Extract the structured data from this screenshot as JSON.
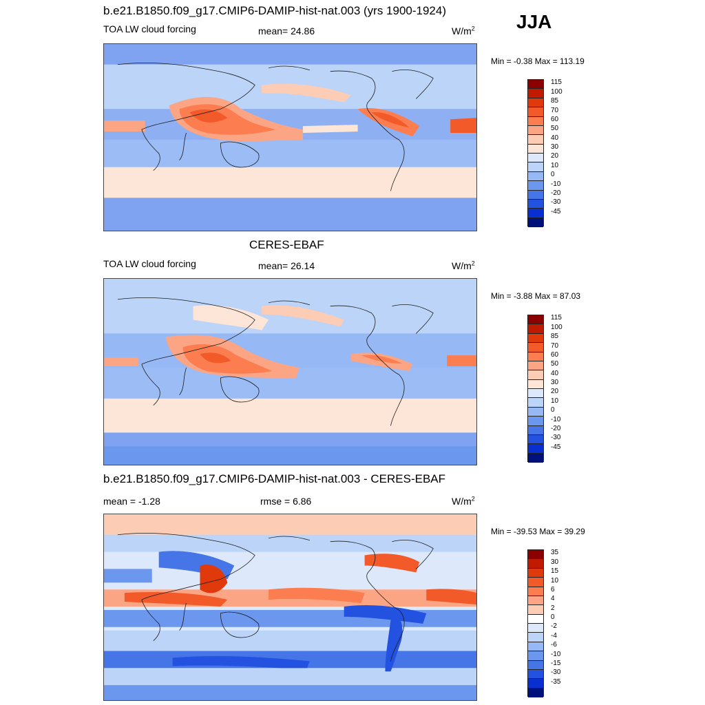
{
  "season": "JJA",
  "panels": [
    {
      "title": "b.e21.B1850.f09_g17.CMIP6-DAMIP-hist-nat.003 (yrs 1900-1924)",
      "left_label": "TOA LW cloud forcing",
      "center_label": "mean=  24.86",
      "units": "W/m",
      "units_sup": "2",
      "minmax": "Min =  -0.38 Max = 113.19",
      "colorbar_levels": [
        "115",
        "100",
        "85",
        "70",
        "60",
        "50",
        "40",
        "30",
        "20",
        "10",
        "0",
        "-10",
        "-20",
        "-30",
        "-45"
      ],
      "colorbar_colors": [
        "#8b0000",
        "#c01a00",
        "#e03a0c",
        "#f25a2a",
        "#fb7d50",
        "#fca584",
        "#fdccb4",
        "#fde6d8",
        "#dde9fb",
        "#bcd4f8",
        "#96b8f4",
        "#6c97ee",
        "#4675e8",
        "#2352e0",
        "#0a2fd0",
        "#00107a"
      ]
    },
    {
      "title": "CERES-EBAF",
      "left_label": "TOA LW cloud forcing",
      "center_label": "mean=  26.14",
      "units": "W/m",
      "units_sup": "2",
      "minmax": "Min =  -3.88 Max =  87.03",
      "colorbar_levels": [
        "115",
        "100",
        "85",
        "70",
        "60",
        "50",
        "40",
        "30",
        "20",
        "10",
        "0",
        "-10",
        "-20",
        "-30",
        "-45"
      ],
      "colorbar_colors": [
        "#8b0000",
        "#c01a00",
        "#e03a0c",
        "#f25a2a",
        "#fb7d50",
        "#fca584",
        "#fdccb4",
        "#fde6d8",
        "#dde9fb",
        "#bcd4f8",
        "#96b8f4",
        "#6c97ee",
        "#4675e8",
        "#2352e0",
        "#0a2fd0",
        "#00107a"
      ]
    },
    {
      "title": "b.e21.B1850.f09_g17.CMIP6-DAMIP-hist-nat.003 - CERES-EBAF",
      "left_label": "mean =  -1.28",
      "center_label": "rmse =   6.86",
      "units": "W/m",
      "units_sup": "2",
      "minmax": "Min = -39.53 Max =  39.29",
      "colorbar_levels": [
        "35",
        "30",
        "15",
        "10",
        "6",
        "4",
        "2",
        "0",
        "-2",
        "-4",
        "-6",
        "-10",
        "-15",
        "-30",
        "-35"
      ],
      "colorbar_colors": [
        "#8b0000",
        "#c01a00",
        "#e03a0c",
        "#f25a2a",
        "#fb7d50",
        "#fca584",
        "#fdccb4",
        "#ffffff",
        "#dde9fb",
        "#bcd4f8",
        "#96b8f4",
        "#6c97ee",
        "#4675e8",
        "#2352e0",
        "#0a2fd0",
        "#00107a"
      ]
    }
  ]
}
